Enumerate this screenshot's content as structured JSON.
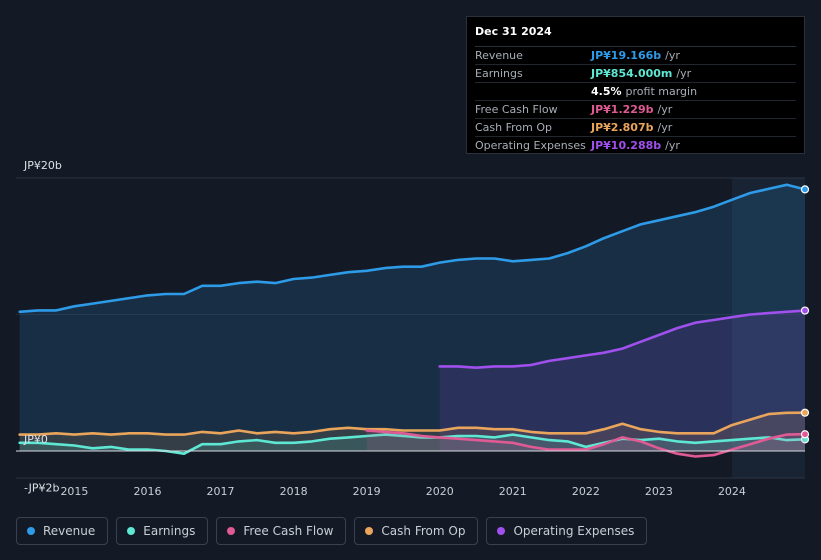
{
  "tooltip": {
    "date": "Dec 31 2024",
    "rows": [
      {
        "label": "Revenue",
        "value": "JP¥19.166b",
        "unit": "/yr",
        "color": "#2e9be8"
      },
      {
        "label": "Earnings",
        "value": "JP¥854.000m",
        "unit": "/yr",
        "color": "#5ee8d3"
      },
      {
        "label": "",
        "value": "4.5%",
        "unit": "profit margin",
        "color": "#ffffff"
      },
      {
        "label": "Free Cash Flow",
        "value": "JP¥1.229b",
        "unit": "/yr",
        "color": "#e05a94"
      },
      {
        "label": "Cash From Op",
        "value": "JP¥2.807b",
        "unit": "/yr",
        "color": "#e9a55c"
      },
      {
        "label": "Operating Expenses",
        "value": "JP¥10.288b",
        "unit": "/yr",
        "color": "#a050ec"
      }
    ]
  },
  "legend": [
    {
      "label": "Revenue",
      "color": "#2e9be8"
    },
    {
      "label": "Earnings",
      "color": "#5ee8d3"
    },
    {
      "label": "Free Cash Flow",
      "color": "#e05a94"
    },
    {
      "label": "Cash From Op",
      "color": "#e9a55c"
    },
    {
      "label": "Operating Expenses",
      "color": "#a050ec"
    }
  ],
  "chart_data": {
    "type": "area",
    "title": "",
    "y_unit": "JP¥b",
    "ylim": [
      -2,
      20
    ],
    "y_tick_labels": [
      {
        "value": 20,
        "label": "JP¥20b"
      },
      {
        "value": 0,
        "label": "JP¥0"
      },
      {
        "value": -2,
        "label": "-JP¥2b"
      }
    ],
    "x_range": [
      2014.2,
      2025.0
    ],
    "x_tick_labels": [
      "2015",
      "2016",
      "2017",
      "2018",
      "2019",
      "2020",
      "2021",
      "2022",
      "2023",
      "2024"
    ],
    "highlight_from": 2024.0,
    "series": [
      {
        "name": "Revenue",
        "color": "#2e9be8",
        "x": [
          2014.25,
          2014.5,
          2014.75,
          2015.0,
          2015.25,
          2015.5,
          2015.75,
          2016.0,
          2016.25,
          2016.5,
          2016.75,
          2017.0,
          2017.25,
          2017.5,
          2017.75,
          2018.0,
          2018.25,
          2018.5,
          2018.75,
          2019.0,
          2019.25,
          2019.5,
          2019.75,
          2020.0,
          2020.25,
          2020.5,
          2020.75,
          2021.0,
          2021.25,
          2021.5,
          2021.75,
          2022.0,
          2022.25,
          2022.5,
          2022.75,
          2023.0,
          2023.25,
          2023.5,
          2023.75,
          2024.0,
          2024.25,
          2024.5,
          2024.75,
          2025.0
        ],
        "values": [
          10.2,
          10.3,
          10.3,
          10.6,
          10.8,
          11.0,
          11.2,
          11.4,
          11.5,
          11.5,
          12.1,
          12.1,
          12.3,
          12.4,
          12.3,
          12.6,
          12.7,
          12.9,
          13.1,
          13.2,
          13.4,
          13.5,
          13.5,
          13.8,
          14.0,
          14.1,
          14.1,
          13.9,
          14.0,
          14.1,
          14.5,
          15.0,
          15.6,
          16.1,
          16.6,
          16.9,
          17.2,
          17.5,
          17.9,
          18.4,
          18.9,
          19.2,
          19.5,
          19.166
        ]
      },
      {
        "name": "Operating Expenses",
        "color": "#a050ec",
        "x": [
          2020.0,
          2020.25,
          2020.5,
          2020.75,
          2021.0,
          2021.25,
          2021.5,
          2021.75,
          2022.0,
          2022.25,
          2022.5,
          2022.75,
          2023.0,
          2023.25,
          2023.5,
          2023.75,
          2024.0,
          2024.25,
          2024.5,
          2024.75,
          2025.0
        ],
        "values": [
          6.2,
          6.2,
          6.1,
          6.2,
          6.2,
          6.3,
          6.6,
          6.8,
          7.0,
          7.2,
          7.5,
          8.0,
          8.5,
          9.0,
          9.4,
          9.6,
          9.8,
          10.0,
          10.1,
          10.2,
          10.288
        ]
      },
      {
        "name": "Cash From Op",
        "color": "#e9a55c",
        "x": [
          2014.25,
          2014.5,
          2014.75,
          2015.0,
          2015.25,
          2015.5,
          2015.75,
          2016.0,
          2016.25,
          2016.5,
          2016.75,
          2017.0,
          2017.25,
          2017.5,
          2017.75,
          2018.0,
          2018.25,
          2018.5,
          2018.75,
          2019.0,
          2019.25,
          2019.5,
          2019.75,
          2020.0,
          2020.25,
          2020.5,
          2020.75,
          2021.0,
          2021.25,
          2021.5,
          2021.75,
          2022.0,
          2022.25,
          2022.5,
          2022.75,
          2023.0,
          2023.25,
          2023.5,
          2023.75,
          2024.0,
          2024.25,
          2024.5,
          2024.75,
          2025.0
        ],
        "values": [
          1.2,
          1.2,
          1.3,
          1.2,
          1.3,
          1.2,
          1.3,
          1.3,
          1.2,
          1.2,
          1.4,
          1.3,
          1.5,
          1.3,
          1.4,
          1.3,
          1.4,
          1.6,
          1.7,
          1.6,
          1.6,
          1.5,
          1.5,
          1.5,
          1.7,
          1.7,
          1.6,
          1.6,
          1.4,
          1.3,
          1.3,
          1.3,
          1.6,
          2.0,
          1.6,
          1.4,
          1.3,
          1.3,
          1.3,
          1.9,
          2.3,
          2.7,
          2.8,
          2.807
        ]
      },
      {
        "name": "Earnings",
        "color": "#5ee8d3",
        "x": [
          2014.25,
          2014.5,
          2014.75,
          2015.0,
          2015.25,
          2015.5,
          2015.75,
          2016.0,
          2016.25,
          2016.5,
          2016.75,
          2017.0,
          2017.25,
          2017.5,
          2017.75,
          2018.0,
          2018.25,
          2018.5,
          2018.75,
          2019.0,
          2019.25,
          2019.5,
          2019.75,
          2020.0,
          2020.25,
          2020.5,
          2020.75,
          2021.0,
          2021.25,
          2021.5,
          2021.75,
          2022.0,
          2022.25,
          2022.5,
          2022.75,
          2023.0,
          2023.25,
          2023.5,
          2023.75,
          2024.0,
          2024.25,
          2024.5,
          2024.75,
          2025.0
        ],
        "values": [
          0.6,
          0.6,
          0.5,
          0.4,
          0.2,
          0.3,
          0.1,
          0.1,
          0.0,
          -0.2,
          0.5,
          0.5,
          0.7,
          0.8,
          0.6,
          0.6,
          0.7,
          0.9,
          1.0,
          1.1,
          1.2,
          1.1,
          1.0,
          1.0,
          1.1,
          1.1,
          1.0,
          1.2,
          1.0,
          0.8,
          0.7,
          0.3,
          0.6,
          0.9,
          0.8,
          0.9,
          0.7,
          0.6,
          0.7,
          0.8,
          0.9,
          1.0,
          0.8,
          0.854
        ]
      },
      {
        "name": "Free Cash Flow",
        "color": "#e05a94",
        "x": [
          2019.0,
          2019.25,
          2019.5,
          2019.75,
          2020.0,
          2020.25,
          2020.5,
          2020.75,
          2021.0,
          2021.25,
          2021.5,
          2021.75,
          2022.0,
          2022.25,
          2022.5,
          2022.75,
          2023.0,
          2023.25,
          2023.5,
          2023.75,
          2024.0,
          2024.25,
          2024.5,
          2024.75,
          2025.0
        ],
        "values": [
          1.5,
          1.4,
          1.3,
          1.1,
          1.0,
          0.9,
          0.8,
          0.7,
          0.6,
          0.3,
          0.1,
          0.1,
          0.1,
          0.5,
          1.0,
          0.7,
          0.2,
          -0.2,
          -0.4,
          -0.3,
          0.1,
          0.5,
          0.9,
          1.2,
          1.229
        ]
      }
    ]
  }
}
